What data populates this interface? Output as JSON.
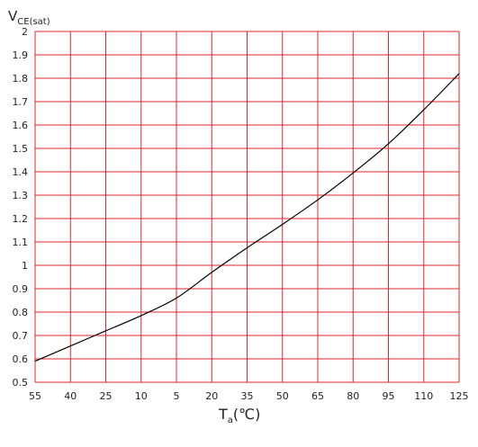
{
  "chart_data": {
    "type": "line",
    "title": "",
    "ylabel": {
      "main": "V",
      "sub": "CE(sat)"
    },
    "xlabel": {
      "main": "T",
      "sub": "a",
      "unit": "(℃)"
    },
    "ylim": [
      0.5,
      2.0
    ],
    "yticks": [
      "0.5",
      "0.6",
      "0.7",
      "0.8",
      "0.9",
      "1",
      "1.1",
      "1.2",
      "1.3",
      "1.4",
      "1.5",
      "1.6",
      "1.7",
      "1.8",
      "1.9",
      "2"
    ],
    "xticks": [
      "55",
      "40",
      "25",
      "10",
      "5",
      "20",
      "35",
      "50",
      "65",
      "80",
      "95",
      "110",
      "125"
    ],
    "grid": true,
    "grid_color": "#e0262e",
    "line_color": "#000000",
    "series": [
      {
        "x": [
          -55,
          -40,
          -25,
          -10,
          5,
          20,
          35,
          50,
          65,
          80,
          95,
          110,
          125
        ],
        "values": [
          0.59,
          0.655,
          0.72,
          0.785,
          0.86,
          0.97,
          1.075,
          1.175,
          1.28,
          1.395,
          1.52,
          1.665,
          1.82
        ]
      }
    ]
  }
}
